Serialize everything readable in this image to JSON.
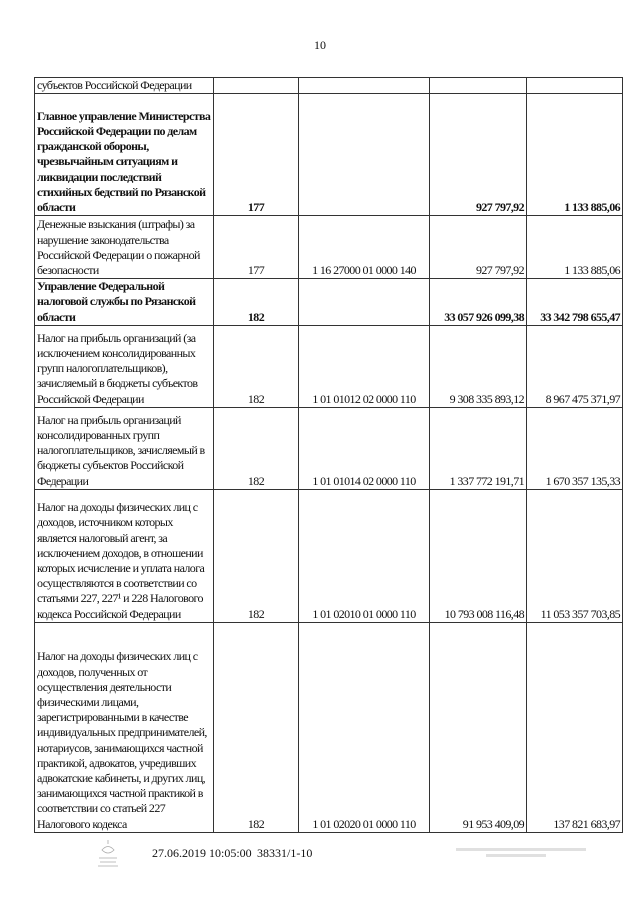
{
  "page_number": "10",
  "table": {
    "rows": [
      {
        "name": "субъектов Российской Федерации",
        "admin": "",
        "code": "",
        "value_1": "",
        "value_2": "",
        "bold": false
      },
      {
        "name": "Главное управление Министерства Российской Федерации по делам гражданской обороны, чрезвычайным ситуациям и ликвидации последствий стихийных бедствий по Рязанской области",
        "admin": "177",
        "code": "",
        "value_1": "927 797,92",
        "value_2": "1 133 885,06",
        "bold": true
      },
      {
        "name": "Денежные взыскания (штрафы) за нарушение законодательства Российской Федерации о пожарной безопасности",
        "admin": "177",
        "code": "1 16 27000 01 0000 140",
        "value_1": "927 797,92",
        "value_2": "1 133 885,06",
        "bold": false
      },
      {
        "name": "Управление Федеральной налоговой службы по Рязанской области",
        "admin": "182",
        "code": "",
        "value_1": "33 057 926 099,38",
        "value_2": "33 342 798 655,47",
        "bold": true
      },
      {
        "name": "Налог на прибыль организаций (за исключением консолидированных групп налогоплательщиков), зачисляемый в бюджеты субъектов Российской Федерации",
        "admin": "182",
        "code": "1 01 01012 02 0000 110",
        "value_1": "9 308 335 893,12",
        "value_2": "8 967 475 371,97",
        "bold": false
      },
      {
        "name": "Налог на прибыль организаций консолидированных групп налогоплательщиков, зачисляемый в бюджеты субъектов Российской Федерации",
        "admin": "182",
        "code": "1 01 01014 02 0000 110",
        "value_1": "1 337 772 191,71",
        "value_2": "1 670 357 135,33",
        "bold": false
      },
      {
        "name": "Налог на доходы физических лиц с доходов, источником которых является налоговый агент, за исключением доходов, в отношении которых исчисление и уплата налога осуществляются в соответствии со статьями 227, 227¹ и 228 Налогового кодекса Российской Федерации",
        "admin": "182",
        "code": "1 01 02010 01 0000 110",
        "value_1": "10 793 008 116,48",
        "value_2": "11 053 357 703,85",
        "bold": false
      },
      {
        "name": "Налог на доходы физических лиц с доходов, полученных от осуществления деятельности физическими лицами, зарегистрированными в качестве индивидуальных предпринимателей, нотариусов, занимающихся частной практикой, адвокатов, учредивших адвокатские кабинеты, и других лиц, занимающихся частной практикой в соответствии со статьей 227 Налогового кодекса",
        "admin": "182",
        "code": "1 01 02020 01 0000 110",
        "value_1": "91 953 409,09",
        "value_2": "137 821 683,97",
        "bold": false
      }
    ]
  },
  "footer": {
    "datetime": "27.06.2019 10:05:00",
    "doc_number": "38331/1-10",
    "logo_icon": "emblem-icon"
  }
}
